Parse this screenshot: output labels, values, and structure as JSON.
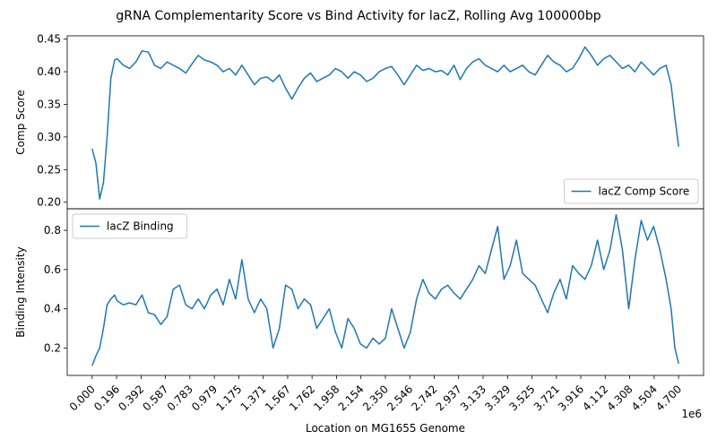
{
  "figure": {
    "title": "gRNA Complementarity Score vs Bind Activity for lacZ, Rolling Avg 100000bp"
  },
  "chart_data": [
    {
      "type": "line",
      "ylabel": "Comp Score",
      "ylim": [
        0.19,
        0.455
      ],
      "xlim": [
        -0.2,
        4.9
      ],
      "yticks": [
        "0.20",
        "0.25",
        "0.30",
        "0.35",
        "0.40",
        "0.45"
      ],
      "legend": {
        "placement": "lower-right"
      },
      "series": [
        {
          "name": "lacZ Comp Score",
          "color": "#1f77b4",
          "x": [
            0.0,
            0.03,
            0.06,
            0.09,
            0.12,
            0.15,
            0.18,
            0.2,
            0.25,
            0.3,
            0.35,
            0.4,
            0.45,
            0.5,
            0.55,
            0.6,
            0.65,
            0.7,
            0.75,
            0.8,
            0.85,
            0.9,
            0.95,
            1.0,
            1.05,
            1.1,
            1.15,
            1.2,
            1.25,
            1.3,
            1.35,
            1.4,
            1.45,
            1.5,
            1.55,
            1.6,
            1.65,
            1.7,
            1.75,
            1.8,
            1.85,
            1.9,
            1.95,
            2.0,
            2.05,
            2.1,
            2.15,
            2.2,
            2.25,
            2.3,
            2.35,
            2.4,
            2.45,
            2.5,
            2.55,
            2.6,
            2.65,
            2.7,
            2.75,
            2.8,
            2.85,
            2.9,
            2.95,
            3.0,
            3.05,
            3.1,
            3.15,
            3.2,
            3.25,
            3.3,
            3.35,
            3.4,
            3.45,
            3.5,
            3.55,
            3.6,
            3.65,
            3.7,
            3.75,
            3.8,
            3.85,
            3.9,
            3.95,
            4.0,
            4.05,
            4.1,
            4.15,
            4.2,
            4.25,
            4.3,
            4.35,
            4.4,
            4.45,
            4.5,
            4.55,
            4.6,
            4.64,
            4.67,
            4.7
          ],
          "values": [
            0.282,
            0.26,
            0.205,
            0.23,
            0.3,
            0.39,
            0.418,
            0.42,
            0.41,
            0.405,
            0.415,
            0.432,
            0.43,
            0.41,
            0.405,
            0.415,
            0.41,
            0.405,
            0.398,
            0.412,
            0.425,
            0.418,
            0.415,
            0.41,
            0.4,
            0.405,
            0.395,
            0.41,
            0.395,
            0.38,
            0.39,
            0.392,
            0.385,
            0.395,
            0.375,
            0.358,
            0.375,
            0.39,
            0.398,
            0.385,
            0.39,
            0.395,
            0.405,
            0.4,
            0.39,
            0.4,
            0.395,
            0.385,
            0.39,
            0.4,
            0.405,
            0.408,
            0.395,
            0.38,
            0.395,
            0.41,
            0.402,
            0.405,
            0.4,
            0.402,
            0.395,
            0.41,
            0.388,
            0.405,
            0.415,
            0.42,
            0.41,
            0.405,
            0.4,
            0.41,
            0.4,
            0.405,
            0.41,
            0.4,
            0.395,
            0.41,
            0.425,
            0.415,
            0.41,
            0.4,
            0.405,
            0.42,
            0.438,
            0.425,
            0.41,
            0.42,
            0.425,
            0.415,
            0.405,
            0.41,
            0.4,
            0.415,
            0.405,
            0.395,
            0.405,
            0.41,
            0.38,
            0.33,
            0.285
          ]
        }
      ]
    },
    {
      "type": "line",
      "xlabel": "Location on MG1655 Genome",
      "ylabel": "Binding Intensity",
      "ylim": [
        0.06,
        0.91
      ],
      "xlim": [
        -0.2,
        4.9
      ],
      "xscale_label": "1e6",
      "yticks": [
        "0.2",
        "0.4",
        "0.6",
        "0.8"
      ],
      "xticks": [
        "0.000",
        "0.196",
        "0.392",
        "0.587",
        "0.783",
        "0.979",
        "1.175",
        "1.371",
        "1.567",
        "1.762",
        "1.958",
        "2.154",
        "2.350",
        "2.546",
        "2.742",
        "2.937",
        "3.133",
        "3.329",
        "3.525",
        "3.721",
        "3.916",
        "4.112",
        "4.308",
        "4.504",
        "4.700"
      ],
      "legend": {
        "placement": "upper-left"
      },
      "series": [
        {
          "name": "lacZ Binding",
          "color": "#1f77b4",
          "x": [
            0.0,
            0.03,
            0.06,
            0.09,
            0.12,
            0.15,
            0.18,
            0.2,
            0.25,
            0.3,
            0.35,
            0.4,
            0.45,
            0.5,
            0.55,
            0.6,
            0.65,
            0.7,
            0.75,
            0.8,
            0.85,
            0.9,
            0.95,
            1.0,
            1.05,
            1.1,
            1.15,
            1.2,
            1.25,
            1.3,
            1.35,
            1.4,
            1.45,
            1.5,
            1.55,
            1.6,
            1.65,
            1.7,
            1.75,
            1.8,
            1.85,
            1.9,
            1.95,
            2.0,
            2.05,
            2.1,
            2.15,
            2.2,
            2.25,
            2.3,
            2.35,
            2.4,
            2.45,
            2.5,
            2.55,
            2.6,
            2.65,
            2.7,
            2.75,
            2.8,
            2.85,
            2.9,
            2.95,
            3.0,
            3.05,
            3.1,
            3.15,
            3.2,
            3.25,
            3.3,
            3.35,
            3.4,
            3.45,
            3.5,
            3.55,
            3.6,
            3.65,
            3.7,
            3.75,
            3.8,
            3.85,
            3.9,
            3.95,
            4.0,
            4.05,
            4.1,
            4.15,
            4.2,
            4.25,
            4.3,
            4.35,
            4.4,
            4.45,
            4.5,
            4.55,
            4.6,
            4.64,
            4.67,
            4.7
          ],
          "values": [
            0.11,
            0.16,
            0.2,
            0.3,
            0.42,
            0.45,
            0.47,
            0.44,
            0.42,
            0.43,
            0.42,
            0.47,
            0.38,
            0.37,
            0.32,
            0.36,
            0.5,
            0.52,
            0.42,
            0.4,
            0.45,
            0.4,
            0.47,
            0.5,
            0.42,
            0.55,
            0.45,
            0.65,
            0.45,
            0.38,
            0.45,
            0.4,
            0.2,
            0.3,
            0.52,
            0.5,
            0.4,
            0.45,
            0.42,
            0.3,
            0.35,
            0.4,
            0.28,
            0.2,
            0.35,
            0.3,
            0.22,
            0.2,
            0.25,
            0.22,
            0.25,
            0.4,
            0.3,
            0.2,
            0.28,
            0.45,
            0.55,
            0.48,
            0.45,
            0.5,
            0.52,
            0.48,
            0.45,
            0.5,
            0.55,
            0.62,
            0.58,
            0.7,
            0.82,
            0.55,
            0.62,
            0.75,
            0.58,
            0.55,
            0.52,
            0.45,
            0.38,
            0.48,
            0.55,
            0.45,
            0.62,
            0.58,
            0.55,
            0.62,
            0.75,
            0.6,
            0.7,
            0.88,
            0.7,
            0.4,
            0.65,
            0.85,
            0.75,
            0.82,
            0.7,
            0.55,
            0.4,
            0.2,
            0.12
          ]
        }
      ]
    }
  ]
}
